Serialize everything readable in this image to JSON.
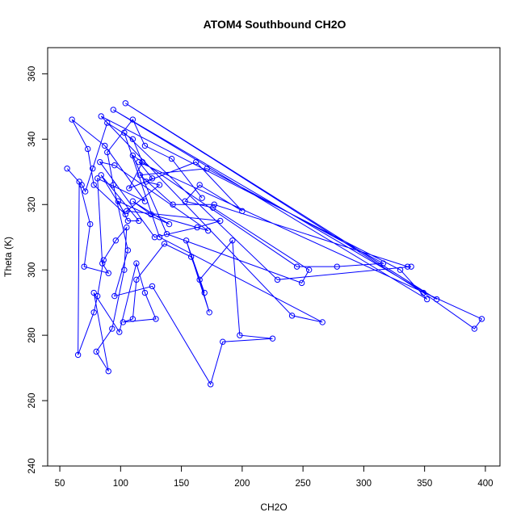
{
  "chart_data": {
    "type": "scatter",
    "title": "ATOM4 Southbound CH2O",
    "xlabel": "CH2O",
    "ylabel": "Theta (K)",
    "xlim": [
      40,
      412
    ],
    "ylim": [
      240,
      368
    ],
    "x_ticks": [
      50,
      100,
      150,
      200,
      250,
      300,
      350,
      400
    ],
    "y_ticks": [
      240,
      260,
      280,
      300,
      320,
      340,
      360
    ],
    "grid": false,
    "legend": "none",
    "marker": "open-circle",
    "connected": true,
    "color": "#0000ff",
    "points": [
      [
        56,
        331
      ],
      [
        68,
        326
      ],
      [
        71,
        324
      ],
      [
        77,
        331
      ],
      [
        89,
        345
      ],
      [
        110,
        340
      ],
      [
        118,
        333
      ],
      [
        107,
        325
      ],
      [
        162,
        333
      ],
      [
        200,
        318
      ],
      [
        165,
        326
      ],
      [
        153,
        321
      ],
      [
        176,
        319
      ],
      [
        255,
        300
      ],
      [
        249,
        296
      ],
      [
        138,
        311
      ],
      [
        110,
        335
      ],
      [
        245,
        301
      ],
      [
        278,
        301
      ],
      [
        316,
        302
      ],
      [
        171,
        331
      ],
      [
        116,
        329
      ],
      [
        143,
        320
      ],
      [
        177,
        320
      ],
      [
        336,
        301
      ],
      [
        339,
        301
      ],
      [
        229,
        297
      ],
      [
        103,
        342
      ],
      [
        132,
        310
      ],
      [
        266,
        284
      ],
      [
        241,
        286
      ],
      [
        84,
        347
      ],
      [
        330,
        300
      ],
      [
        352,
        291
      ],
      [
        94,
        349
      ],
      [
        360,
        291
      ],
      [
        104,
        351
      ],
      [
        349,
        293
      ],
      [
        391,
        282
      ],
      [
        397,
        285
      ],
      [
        115,
        333
      ],
      [
        126,
        328
      ],
      [
        121,
        327
      ],
      [
        132,
        326
      ],
      [
        105,
        318
      ],
      [
        182,
        315
      ],
      [
        163,
        313
      ],
      [
        128,
        310
      ],
      [
        83,
        333
      ],
      [
        95,
        332
      ],
      [
        172,
        312
      ],
      [
        125,
        317
      ],
      [
        110,
        321
      ],
      [
        140,
        314
      ],
      [
        98,
        321
      ],
      [
        106,
        315
      ],
      [
        115,
        315
      ],
      [
        84,
        329
      ],
      [
        104,
        317
      ],
      [
        78,
        326
      ],
      [
        73,
        337
      ],
      [
        60,
        346
      ],
      [
        87,
        338
      ],
      [
        120,
        321
      ],
      [
        81,
        328
      ],
      [
        85,
        302
      ],
      [
        90,
        299
      ],
      [
        70,
        301
      ],
      [
        75,
        314
      ],
      [
        66,
        327
      ],
      [
        65,
        274
      ],
      [
        78,
        287
      ],
      [
        81,
        292
      ],
      [
        86,
        303
      ],
      [
        96,
        309
      ],
      [
        105,
        313
      ],
      [
        103,
        300
      ],
      [
        93,
        282
      ],
      [
        80,
        275
      ],
      [
        90,
        269
      ],
      [
        78,
        293
      ],
      [
        99,
        281
      ],
      [
        113,
        302
      ],
      [
        120,
        293
      ],
      [
        129,
        285
      ],
      [
        102,
        284
      ],
      [
        110,
        285
      ],
      [
        113,
        297
      ],
      [
        136,
        308
      ],
      [
        158,
        304
      ],
      [
        169,
        293
      ],
      [
        154,
        309
      ],
      [
        173,
        287
      ],
      [
        165,
        297
      ],
      [
        192,
        309
      ],
      [
        198,
        280
      ],
      [
        225,
        279
      ],
      [
        184,
        278
      ],
      [
        174,
        265
      ],
      [
        126,
        295
      ],
      [
        95,
        292
      ],
      [
        106,
        306
      ],
      [
        94,
        326
      ],
      [
        89,
        336
      ],
      [
        110,
        346
      ],
      [
        120,
        338
      ],
      [
        142,
        334
      ],
      [
        167,
        322
      ]
    ]
  }
}
